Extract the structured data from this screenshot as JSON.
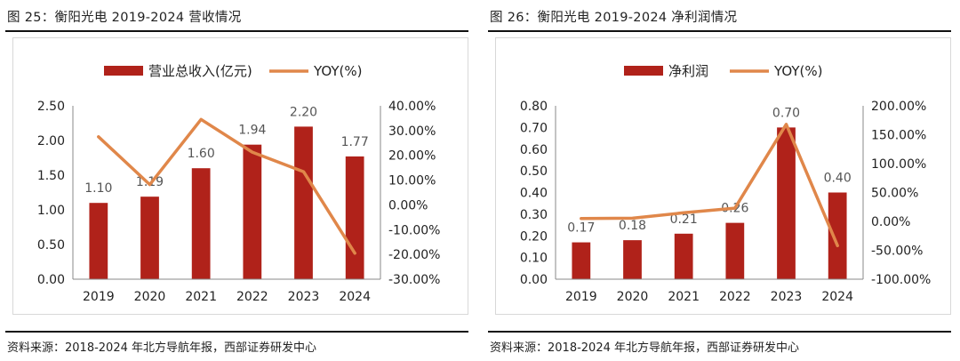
{
  "colors": {
    "bar": "#B0221A",
    "line": "#E0874A",
    "text": "#222222"
  },
  "source_text": "资料来源：2018-2024 年北方导航年报，西部证券研发中心",
  "chart_data": [
    {
      "type": "bar",
      "title": "图 25：衡阳光电 2019-2024 营收情况",
      "categories": [
        "2019",
        "2020",
        "2021",
        "2022",
        "2023",
        "2024"
      ],
      "series": [
        {
          "name": "营业总收入(亿元)",
          "kind": "bar",
          "axis": "left",
          "values": [
            1.1,
            1.19,
            1.6,
            1.94,
            2.2,
            1.77
          ],
          "labels": [
            "1.10",
            "1.19",
            "1.60",
            "1.94",
            "2.20",
            "1.77"
          ]
        },
        {
          "name": "YOY(%)",
          "kind": "line",
          "axis": "right",
          "values": [
            27.5,
            8.2,
            34.5,
            21.3,
            13.4,
            -19.5
          ]
        }
      ],
      "y_left": {
        "min": 0,
        "max": 2.5,
        "ticks": [
          0,
          0.5,
          1.0,
          1.5,
          2.0,
          2.5
        ],
        "tick_labels": [
          "0.00",
          "0.50",
          "1.00",
          "1.50",
          "2.00",
          "2.50"
        ]
      },
      "y_right": {
        "min": -30,
        "max": 40,
        "ticks": [
          -30,
          -20,
          -10,
          0,
          10,
          20,
          30,
          40
        ],
        "tick_labels": [
          "-30.00%",
          "-20.00%",
          "-10.00%",
          "0.00%",
          "10.00%",
          "20.00%",
          "30.00%",
          "40.00%"
        ]
      },
      "legend_position": "top",
      "grid": false
    },
    {
      "type": "bar",
      "title": "图 26：衡阳光电 2019-2024 净利润情况",
      "categories": [
        "2019",
        "2020",
        "2021",
        "2022",
        "2023",
        "2024"
      ],
      "series": [
        {
          "name": "净利润",
          "kind": "bar",
          "axis": "left",
          "values": [
            0.17,
            0.18,
            0.21,
            0.26,
            0.7,
            0.4
          ],
          "labels": [
            "0.17",
            "0.18",
            "0.21",
            "0.26",
            "0.70",
            "0.40"
          ]
        },
        {
          "name": "YOY(%)",
          "kind": "line",
          "axis": "right",
          "values": [
            5.0,
            5.5,
            15.0,
            23.0,
            168.0,
            -42.0
          ]
        }
      ],
      "y_left": {
        "min": 0,
        "max": 0.8,
        "ticks": [
          0,
          0.1,
          0.2,
          0.3,
          0.4,
          0.5,
          0.6,
          0.7,
          0.8
        ],
        "tick_labels": [
          "0.00",
          "0.10",
          "0.20",
          "0.30",
          "0.40",
          "0.50",
          "0.60",
          "0.70",
          "0.80"
        ]
      },
      "y_right": {
        "min": -100,
        "max": 200,
        "ticks": [
          -100,
          -50,
          0,
          50,
          100,
          150,
          200
        ],
        "tick_labels": [
          "-100.00%",
          "-50.00%",
          "0.00%",
          "50.00%",
          "100.00%",
          "150.00%",
          "200.00%"
        ]
      },
      "legend_position": "top",
      "grid": false
    }
  ]
}
